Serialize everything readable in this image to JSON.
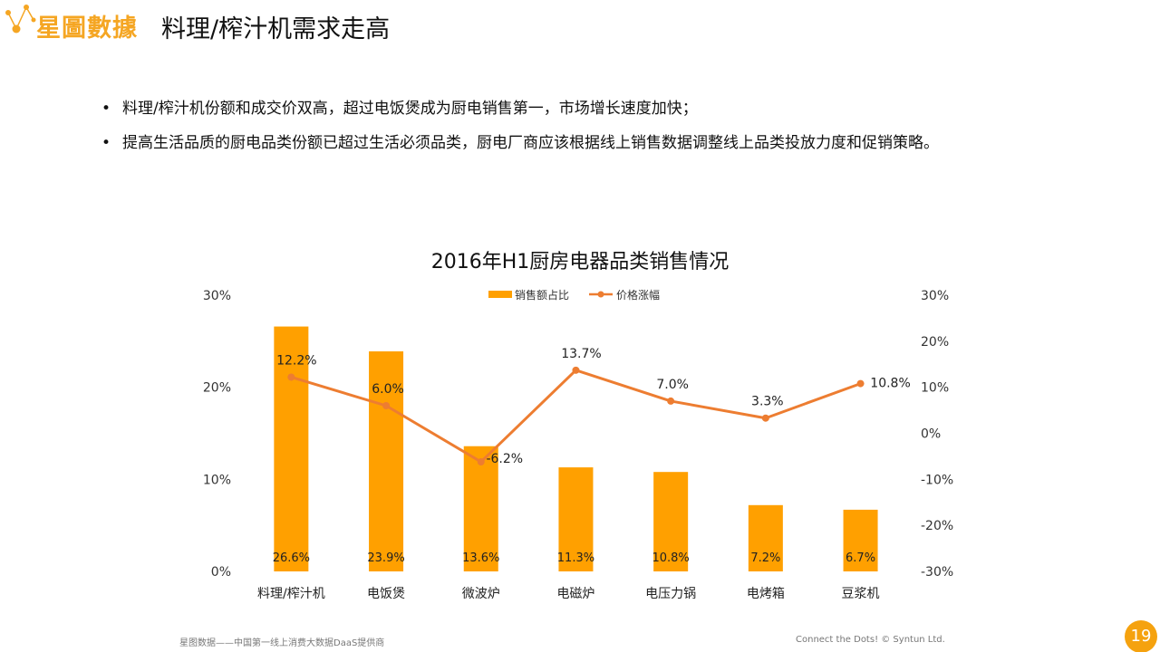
{
  "header": {
    "brand": "星圖數據",
    "title": "料理/榨汁机需求走高"
  },
  "bullets": [
    "料理/榨汁机份额和成交价双高，超过电饭煲成为厨电销售第一，市场增长速度加快；",
    "提高生活品质的厨电品类份额已超过生活必须品类，厨电厂商应该根据线上销售数据调整线上品类投放力度和促销策略。"
  ],
  "colors": {
    "brand": "#F5A623",
    "bar": "#FFA000",
    "line": "#ED7D31",
    "page_badge": "#F5A20F"
  },
  "chart_data": {
    "type": "bar",
    "title": "2016年H1厨房电器品类销售情况",
    "categories": [
      "料理/榨汁机",
      "电饭煲",
      "微波炉",
      "电磁炉",
      "电压力锅",
      "电烤箱",
      "豆浆机"
    ],
    "series": [
      {
        "name": "销售额占比",
        "type": "bar",
        "axis": "left",
        "values": [
          26.6,
          23.9,
          13.6,
          11.3,
          10.8,
          7.2,
          6.7
        ],
        "labels": [
          "26.6%",
          "23.9%",
          "13.6%",
          "11.3%",
          "10.8%",
          "7.2%",
          "6.7%"
        ]
      },
      {
        "name": "价格涨幅",
        "type": "line",
        "axis": "right",
        "values": [
          12.2,
          6.0,
          -6.2,
          13.7,
          7.0,
          3.3,
          10.8
        ],
        "labels": [
          "12.2%",
          "6.0%",
          "-6.2%",
          "13.7%",
          "7.0%",
          "3.3%",
          "10.8%"
        ]
      }
    ],
    "y_left": {
      "ylim": [
        0,
        30
      ],
      "ticks": [
        "0%",
        "10%",
        "20%",
        "30%"
      ]
    },
    "y_right": {
      "ylim": [
        -30,
        30
      ],
      "ticks": [
        "-30%",
        "-20%",
        "-10%",
        "0%",
        "10%",
        "20%",
        "30%"
      ]
    },
    "legend": "top-center",
    "grid": false
  },
  "footer": {
    "left": "星图数据——中国第一线上消费大数据DaaS提供商",
    "right": "Connect the Dots!  © Syntun Ltd.",
    "page": "19"
  }
}
